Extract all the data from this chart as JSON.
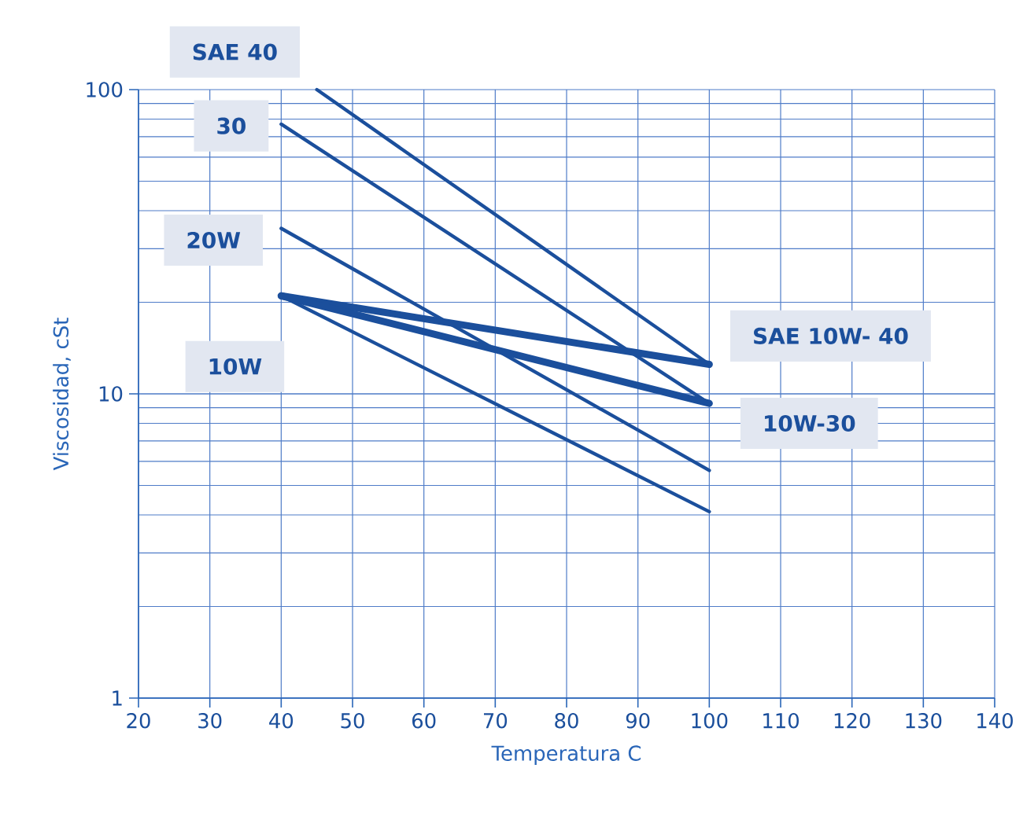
{
  "chart_data": {
    "type": "line",
    "xlabel": "Temperatura  C",
    "ylabel": "Viscosidad,  cSt",
    "log": "y",
    "grid": true,
    "xlim": [
      20,
      140
    ],
    "xticks": [
      20,
      30,
      40,
      50,
      60,
      70,
      80,
      90,
      100,
      110,
      120,
      130,
      140
    ],
    "ylim": [
      1,
      100
    ],
    "yticks": [
      1,
      10,
      100
    ],
    "series": [
      {
        "name": "SAE 40",
        "color": "#1b4f9c",
        "x": [
          45,
          100
        ],
        "values": [
          100,
          12.5
        ]
      },
      {
        "name": "30",
        "color": "#1b4f9c",
        "x": [
          40,
          100
        ],
        "values": [
          77,
          9.3
        ]
      },
      {
        "name": "20W",
        "color": "#1b4f9c",
        "x": [
          40,
          100
        ],
        "values": [
          35,
          5.6
        ]
      },
      {
        "name": "10W",
        "color": "#1b4f9c",
        "x": [
          40,
          100
        ],
        "values": [
          21,
          4.1
        ]
      },
      {
        "name": "SAE 10W- 40",
        "color": "#1b4f9c",
        "x": [
          40,
          100
        ],
        "values": [
          21,
          12.5
        ]
      },
      {
        "name": "10W-30",
        "color": "#1b4f9c",
        "x": [
          40,
          100
        ],
        "values": [
          21,
          9.3
        ]
      }
    ]
  }
}
